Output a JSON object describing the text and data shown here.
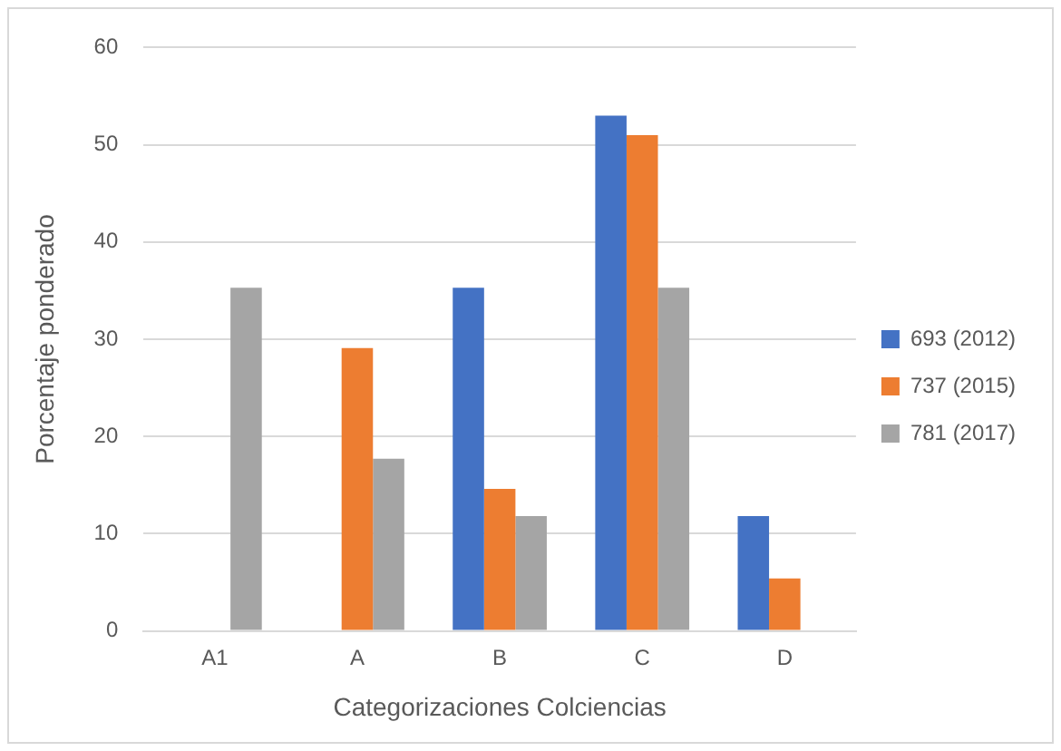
{
  "chart_data": {
    "type": "bar",
    "xlabel": "Categorizaciones Colciencias",
    "ylabel": "Porcentaje ponderado",
    "categories": [
      "A1",
      "A",
      "B",
      "C",
      "D"
    ],
    "series": [
      {
        "name": "693 (2012)",
        "color": "#4472c4",
        "values": [
          null,
          null,
          35.3,
          53.0,
          11.8
        ]
      },
      {
        "name": "737 (2015)",
        "color": "#ed7d31",
        "values": [
          null,
          29.1,
          14.6,
          51.0,
          5.4
        ]
      },
      {
        "name": "781 (2017)",
        "color": "#a5a5a5",
        "values": [
          35.3,
          17.7,
          11.8,
          35.3,
          null
        ]
      }
    ],
    "ylim": [
      0,
      60
    ],
    "yticks": [
      0,
      10,
      20,
      30,
      40,
      50,
      60
    ],
    "grid": "y",
    "legend": "right"
  }
}
